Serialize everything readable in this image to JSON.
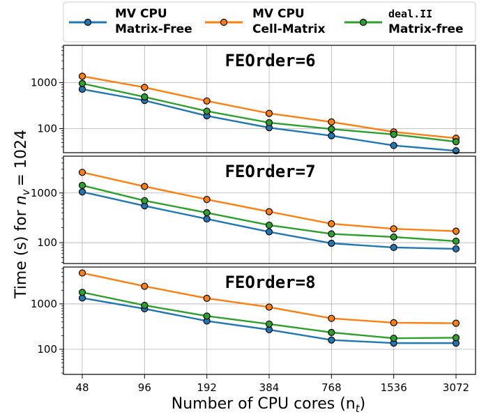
{
  "chart_data": {
    "type": "line",
    "xlabel": "Number of CPU cores",
    "xlabel_symbol": "(n",
    "xlabel_sub": "t",
    "ylabel": "Time (s) for",
    "ylabel_symbol": "n",
    "ylabel_sub": "v",
    "ylabel_eq": "= 1024",
    "y_scale": "log",
    "grid": true,
    "legend_placement": "top",
    "x_categories": [
      "48",
      "96",
      "192",
      "384",
      "768",
      "1536",
      "3072"
    ],
    "y_tick_labels": [
      "100",
      "1000"
    ],
    "legend": [
      {
        "line1": "MV CPU",
        "line2": "Matrix-Free",
        "color": "#1f77b4"
      },
      {
        "line1": "MV CPU",
        "line2": "Cell-Matrix",
        "color": "#ff7f0e"
      },
      {
        "line1": "deal.II",
        "line2": "Matrix-free",
        "color": "#2ca02c"
      }
    ],
    "panels": [
      {
        "title": "FEOrder=6",
        "ylim": [
          30,
          6500
        ],
        "series": [
          {
            "color": "#1f77b4",
            "values": [
              720,
              410,
              190,
              105,
              70,
              43,
              33
            ]
          },
          {
            "color": "#ff7f0e",
            "values": [
              1380,
              790,
              400,
              215,
              140,
              85,
              62
            ]
          },
          {
            "color": "#2ca02c",
            "values": [
              960,
              490,
              240,
              135,
              98,
              75,
              52
            ]
          }
        ]
      },
      {
        "title": "FEOrder=7",
        "ylim": [
          38,
          5500
        ],
        "series": [
          {
            "color": "#1f77b4",
            "values": [
              1050,
              550,
              300,
              165,
              97,
              80,
              75
            ]
          },
          {
            "color": "#ff7f0e",
            "values": [
              2600,
              1350,
              740,
              420,
              240,
              190,
              170
            ]
          },
          {
            "color": "#2ca02c",
            "values": [
              1420,
              700,
              400,
              225,
              150,
              130,
              107
            ]
          }
        ]
      },
      {
        "title": "FEOrder=8",
        "ylim": [
          28,
          6500
        ],
        "series": [
          {
            "color": "#1f77b4",
            "values": [
              1350,
              780,
              420,
              270,
              160,
              137,
              137
            ]
          },
          {
            "color": "#ff7f0e",
            "values": [
              4800,
              2450,
              1330,
              850,
              480,
              385,
              375
            ]
          },
          {
            "color": "#2ca02c",
            "values": [
              1800,
              930,
              540,
              360,
              235,
              175,
              180
            ]
          }
        ]
      }
    ]
  }
}
